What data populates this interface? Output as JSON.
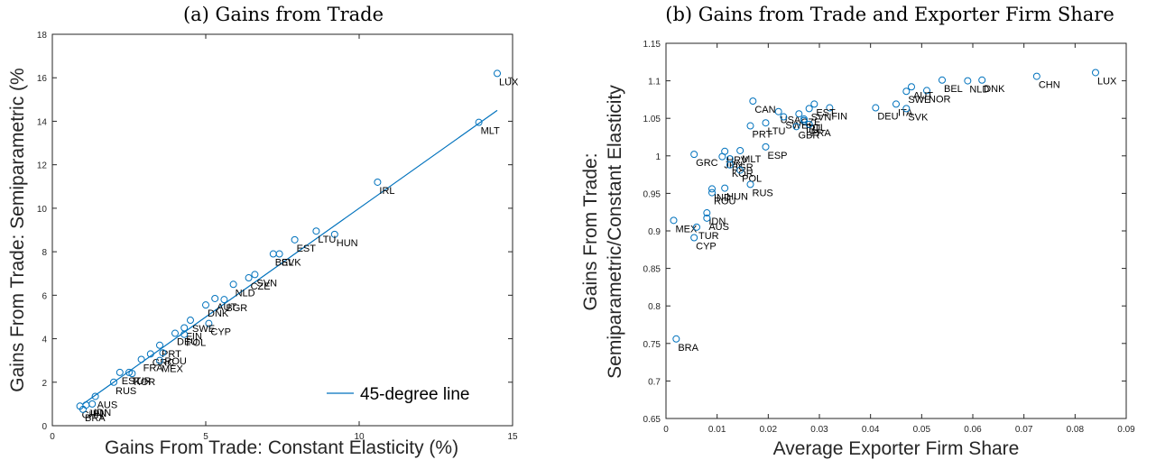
{
  "chart_data": [
    {
      "type": "scatter",
      "title": "(a) Gains from Trade",
      "xlabel": "Gains From Trade: Constant Elasticity (%)",
      "ylabel": "Gains From Trade: Semiparametric (%",
      "xlim": [
        0,
        15
      ],
      "ylim": [
        0,
        18
      ],
      "xticks": [
        0,
        5,
        10,
        15
      ],
      "yticks": [
        0,
        2,
        4,
        6,
        8,
        10,
        12,
        14,
        16,
        18
      ],
      "grid": false,
      "legend": {
        "position": "bottom-right",
        "entries": [
          "45-degree line"
        ]
      },
      "line": {
        "name": "45-degree line",
        "x": [
          1.0,
          14.5
        ],
        "y": [
          1.0,
          14.5
        ],
        "color": "#0072BD"
      },
      "points": [
        {
          "label": "LUX",
          "x": 14.5,
          "y": 16.2
        },
        {
          "label": "MLT",
          "x": 13.9,
          "y": 13.95
        },
        {
          "label": "IRL",
          "x": 10.6,
          "y": 11.2
        },
        {
          "label": "HUN",
          "x": 9.2,
          "y": 8.8
        },
        {
          "label": "LTU",
          "x": 8.6,
          "y": 8.95
        },
        {
          "label": "EST",
          "x": 7.9,
          "y": 8.55
        },
        {
          "label": "BEL",
          "x": 7.2,
          "y": 7.9
        },
        {
          "label": "SVK",
          "x": 7.4,
          "y": 7.9
        },
        {
          "label": "SVN",
          "x": 6.6,
          "y": 6.95
        },
        {
          "label": "CZE",
          "x": 6.4,
          "y": 6.8
        },
        {
          "label": "NLD",
          "x": 5.9,
          "y": 6.5
        },
        {
          "label": "BGR",
          "x": 5.6,
          "y": 5.8
        },
        {
          "label": "AUT",
          "x": 5.3,
          "y": 5.85
        },
        {
          "label": "DNK",
          "x": 5.0,
          "y": 5.55
        },
        {
          "label": "CYP",
          "x": 5.1,
          "y": 4.7
        },
        {
          "label": "SWE",
          "x": 4.5,
          "y": 4.85
        },
        {
          "label": "FIN",
          "x": 4.3,
          "y": 4.5
        },
        {
          "label": "DEU",
          "x": 4.0,
          "y": 4.25
        },
        {
          "label": "POL",
          "x": 4.3,
          "y": 4.2
        },
        {
          "label": "PRT",
          "x": 3.5,
          "y": 3.7
        },
        {
          "label": "ROU",
          "x": 3.6,
          "y": 3.35
        },
        {
          "label": "GRC",
          "x": 3.2,
          "y": 3.3
        },
        {
          "label": "MEX",
          "x": 3.5,
          "y": 3.0
        },
        {
          "label": "FRA",
          "x": 2.9,
          "y": 3.05
        },
        {
          "label": "KOR",
          "x": 2.6,
          "y": 2.4
        },
        {
          "label": "EST",
          "x": 2.2,
          "y": 2.45
        },
        {
          "label": "TUR",
          "x": 2.5,
          "y": 2.45
        },
        {
          "label": "RUS",
          "x": 2.0,
          "y": 2.0
        },
        {
          "label": "AUS",
          "x": 1.4,
          "y": 1.35
        },
        {
          "label": "IDN",
          "x": 1.3,
          "y": 1.0
        },
        {
          "label": "JPN",
          "x": 1.1,
          "y": 0.95
        },
        {
          "label": "CHN",
          "x": 0.9,
          "y": 0.9
        },
        {
          "label": "BRA",
          "x": 1.0,
          "y": 0.75
        }
      ]
    },
    {
      "type": "scatter",
      "title": "(b) Gains from Trade and Exporter Firm Share",
      "xlabel": "Average Exporter Firm Share",
      "ylabel": "Gains From Trade:",
      "ylabel2": "Semiparametric/Constant Elasticity",
      "xlim": [
        0,
        0.09
      ],
      "ylim": [
        0.65,
        1.15
      ],
      "xticks": [
        "0",
        "0.01",
        "0.02",
        "0.03",
        "0.04",
        "0.05",
        "0.06",
        "0.07",
        "0.08",
        "0.09"
      ],
      "yticks": [
        "0.65",
        "0.7",
        "0.75",
        "0.8",
        "0.85",
        "0.9",
        "0.95",
        "1",
        "1.05",
        "1.1",
        "1.15"
      ],
      "grid": false,
      "points": [
        {
          "label": "LUX",
          "x": 0.084,
          "y": 1.111
        },
        {
          "label": "CHN",
          "x": 0.0725,
          "y": 1.106
        },
        {
          "label": "DNK",
          "x": 0.0618,
          "y": 1.101
        },
        {
          "label": "NLD",
          "x": 0.059,
          "y": 1.1
        },
        {
          "label": "BEL",
          "x": 0.054,
          "y": 1.101
        },
        {
          "label": "NOR",
          "x": 0.051,
          "y": 1.087
        },
        {
          "label": "AUT",
          "x": 0.048,
          "y": 1.092
        },
        {
          "label": "SWE",
          "x": 0.047,
          "y": 1.086
        },
        {
          "label": "ITA",
          "x": 0.045,
          "y": 1.069
        },
        {
          "label": "SVK",
          "x": 0.047,
          "y": 1.063
        },
        {
          "label": "DEU",
          "x": 0.041,
          "y": 1.064
        },
        {
          "label": "FIN",
          "x": 0.032,
          "y": 1.064
        },
        {
          "label": "EST",
          "x": 0.029,
          "y": 1.069
        },
        {
          "label": "SVN",
          "x": 0.028,
          "y": 1.063
        },
        {
          "label": "CAN",
          "x": 0.017,
          "y": 1.073
        },
        {
          "label": "USA",
          "x": 0.022,
          "y": 1.059
        },
        {
          "label": "SWE",
          "x": 0.023,
          "y": 1.052
        },
        {
          "label": "CZE",
          "x": 0.026,
          "y": 1.056
        },
        {
          "label": "POL",
          "x": 0.027,
          "y": 1.049
        },
        {
          "label": "IRL",
          "x": 0.027,
          "y": 1.047
        },
        {
          "label": "FRA",
          "x": 0.028,
          "y": 1.042
        },
        {
          "label": "GBR",
          "x": 0.0255,
          "y": 1.039
        },
        {
          "label": "LTU",
          "x": 0.0195,
          "y": 1.044
        },
        {
          "label": "PRT",
          "x": 0.0165,
          "y": 1.04
        },
        {
          "label": "ESP",
          "x": 0.0195,
          "y": 1.012
        },
        {
          "label": "GRC",
          "x": 0.0055,
          "y": 1.002
        },
        {
          "label": "MLT",
          "x": 0.0145,
          "y": 1.007
        },
        {
          "label": "HRV",
          "x": 0.0115,
          "y": 1.006
        },
        {
          "label": "JPN",
          "x": 0.011,
          "y": 0.999
        },
        {
          "label": "BGR",
          "x": 0.0125,
          "y": 0.996
        },
        {
          "label": "KOR",
          "x": 0.0125,
          "y": 0.988
        },
        {
          "label": "POL",
          "x": 0.0145,
          "y": 0.981
        },
        {
          "label": "RUS",
          "x": 0.0165,
          "y": 0.962
        },
        {
          "label": "HUN",
          "x": 0.0115,
          "y": 0.957
        },
        {
          "label": "IND",
          "x": 0.009,
          "y": 0.956
        },
        {
          "label": "ROU",
          "x": 0.009,
          "y": 0.951
        },
        {
          "label": "IDN",
          "x": 0.008,
          "y": 0.924
        },
        {
          "label": "AUS",
          "x": 0.008,
          "y": 0.917
        },
        {
          "label": "MEX",
          "x": 0.0015,
          "y": 0.914
        },
        {
          "label": "TUR",
          "x": 0.006,
          "y": 0.905
        },
        {
          "label": "CYP",
          "x": 0.0055,
          "y": 0.891
        },
        {
          "label": "BRA",
          "x": 0.002,
          "y": 0.756
        }
      ]
    }
  ]
}
